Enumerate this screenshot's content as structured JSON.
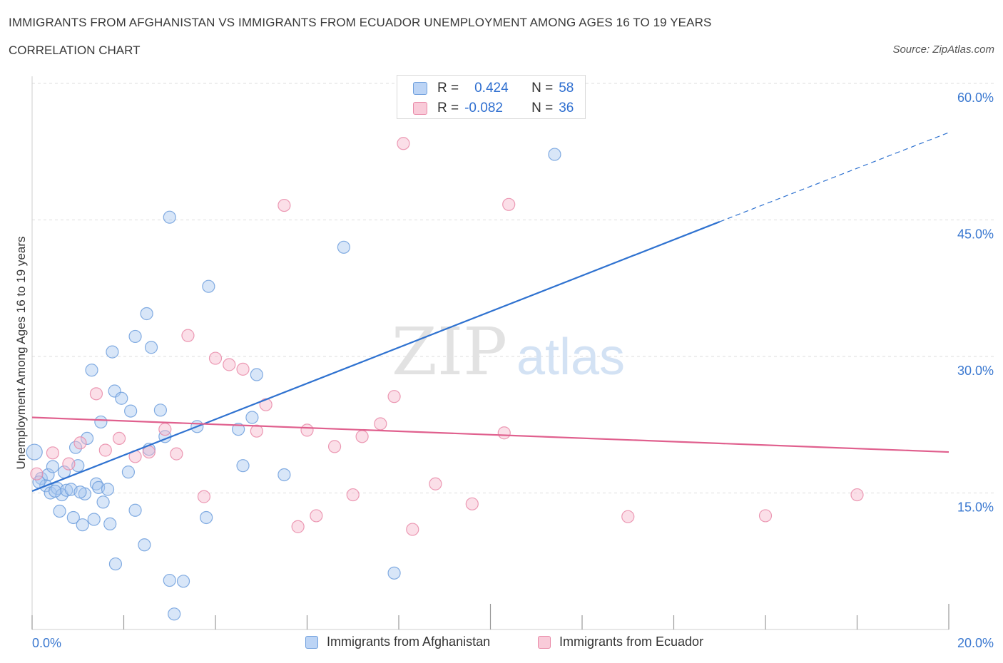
{
  "header": {
    "title": "IMMIGRANTS FROM AFGHANISTAN VS IMMIGRANTS FROM ECUADOR UNEMPLOYMENT AMONG AGES 16 TO 19 YEARS",
    "subtitle": "CORRELATION CHART",
    "source": "Source: ZipAtlas.com"
  },
  "watermark": {
    "zip": "ZIP",
    "atlas": "atlas"
  },
  "stats_box": {
    "rows": [
      {
        "r_label": "R =",
        "r_value": "0.424",
        "n_label": "N =",
        "n_value": "58"
      },
      {
        "r_label": "R =",
        "r_value": "-0.082",
        "n_label": "N =",
        "n_value": "36"
      }
    ]
  },
  "colors": {
    "series1_fill": "#a9c8f0",
    "series1_stroke": "#6f9fdd",
    "series1_line": "#2f72d0",
    "series2_fill": "#f6b8cc",
    "series2_stroke": "#e98aa8",
    "series2_line": "#e0608e",
    "axis_text": "#3a78d0",
    "grid": "#dddddd"
  },
  "chart_data": {
    "type": "scatter",
    "title": "IMMIGRANTS FROM AFGHANISTAN VS IMMIGRANTS FROM ECUADOR UNEMPLOYMENT AMONG AGES 16 TO 19 YEARS",
    "xlabel": "",
    "ylabel": "Unemployment Among Ages 16 to 19 years",
    "xlim": [
      0,
      20
    ],
    "ylim": [
      0,
      60
    ],
    "x_tick_labels": [
      "0.0%",
      "20.0%"
    ],
    "y_ticks": [
      15,
      30,
      45,
      60
    ],
    "y_tick_labels": [
      "15.0%",
      "30.0%",
      "45.0%",
      "60.0%"
    ],
    "grid": true,
    "legend_position": "bottom",
    "series": [
      {
        "name": "Immigrants from Afghanistan",
        "trend": {
          "x": [
            0,
            15
          ],
          "y": [
            15.2,
            44.8
          ],
          "dashed_to": [
            20,
            54.6
          ]
        },
        "points": [
          [
            0.05,
            19.5
          ],
          [
            0.2,
            16.6
          ],
          [
            0.3,
            15.8
          ],
          [
            0.35,
            17.0
          ],
          [
            0.4,
            15.0
          ],
          [
            0.45,
            17.9
          ],
          [
            0.55,
            15.5
          ],
          [
            0.6,
            13.0
          ],
          [
            0.65,
            14.8
          ],
          [
            0.7,
            17.3
          ],
          [
            0.75,
            15.3
          ],
          [
            0.85,
            15.4
          ],
          [
            0.9,
            12.3
          ],
          [
            0.95,
            20.0
          ],
          [
            1.0,
            18.0
          ],
          [
            1.1,
            11.5
          ],
          [
            1.15,
            14.9
          ],
          [
            1.2,
            21.0
          ],
          [
            1.3,
            28.5
          ],
          [
            1.35,
            12.1
          ],
          [
            1.4,
            16.0
          ],
          [
            1.45,
            15.6
          ],
          [
            1.5,
            22.8
          ],
          [
            1.55,
            14.0
          ],
          [
            1.65,
            15.4
          ],
          [
            1.7,
            11.6
          ],
          [
            1.75,
            30.5
          ],
          [
            1.8,
            26.2
          ],
          [
            1.82,
            7.2
          ],
          [
            1.95,
            25.4
          ],
          [
            2.1,
            17.3
          ],
          [
            2.15,
            24.0
          ],
          [
            2.25,
            13.1
          ],
          [
            2.25,
            32.2
          ],
          [
            2.45,
            9.3
          ],
          [
            2.5,
            34.7
          ],
          [
            2.55,
            19.8
          ],
          [
            2.6,
            31.0
          ],
          [
            2.8,
            24.1
          ],
          [
            2.9,
            21.2
          ],
          [
            3.0,
            45.3
          ],
          [
            3.0,
            5.4
          ],
          [
            3.1,
            1.7
          ],
          [
            3.3,
            5.3
          ],
          [
            3.6,
            22.3
          ],
          [
            3.8,
            12.3
          ],
          [
            3.85,
            37.7
          ],
          [
            4.5,
            22.0
          ],
          [
            4.6,
            18.0
          ],
          [
            4.8,
            23.3
          ],
          [
            4.9,
            28.0
          ],
          [
            5.5,
            17.0
          ],
          [
            6.8,
            42.0
          ],
          [
            7.9,
            6.2
          ],
          [
            11.4,
            52.2
          ],
          [
            0.15,
            16.2
          ],
          [
            0.5,
            15.2
          ],
          [
            1.05,
            15.1
          ]
        ]
      },
      {
        "name": "Immigrants from Ecuador",
        "trend": {
          "x": [
            0,
            20
          ],
          "y": [
            23.3,
            19.5
          ]
        },
        "points": [
          [
            0.1,
            17.1
          ],
          [
            0.45,
            19.4
          ],
          [
            0.8,
            18.2
          ],
          [
            1.05,
            20.5
          ],
          [
            1.4,
            25.9
          ],
          [
            1.6,
            19.7
          ],
          [
            1.9,
            21.0
          ],
          [
            2.25,
            19.0
          ],
          [
            2.55,
            19.5
          ],
          [
            2.9,
            22.0
          ],
          [
            3.15,
            19.3
          ],
          [
            3.4,
            32.3
          ],
          [
            3.75,
            14.6
          ],
          [
            4.0,
            29.8
          ],
          [
            4.3,
            29.1
          ],
          [
            4.6,
            28.6
          ],
          [
            4.9,
            21.8
          ],
          [
            5.1,
            24.7
          ],
          [
            5.5,
            46.6
          ],
          [
            5.8,
            11.3
          ],
          [
            6.0,
            21.9
          ],
          [
            6.2,
            12.5
          ],
          [
            6.6,
            20.1
          ],
          [
            7.0,
            14.8
          ],
          [
            7.2,
            21.2
          ],
          [
            7.6,
            22.6
          ],
          [
            7.9,
            25.6
          ],
          [
            8.1,
            53.4
          ],
          [
            8.3,
            11.0
          ],
          [
            8.8,
            16.0
          ],
          [
            9.6,
            13.8
          ],
          [
            10.3,
            21.6
          ],
          [
            10.4,
            46.7
          ],
          [
            13.0,
            12.4
          ],
          [
            16.0,
            12.5
          ],
          [
            18.0,
            14.8
          ]
        ]
      }
    ]
  }
}
